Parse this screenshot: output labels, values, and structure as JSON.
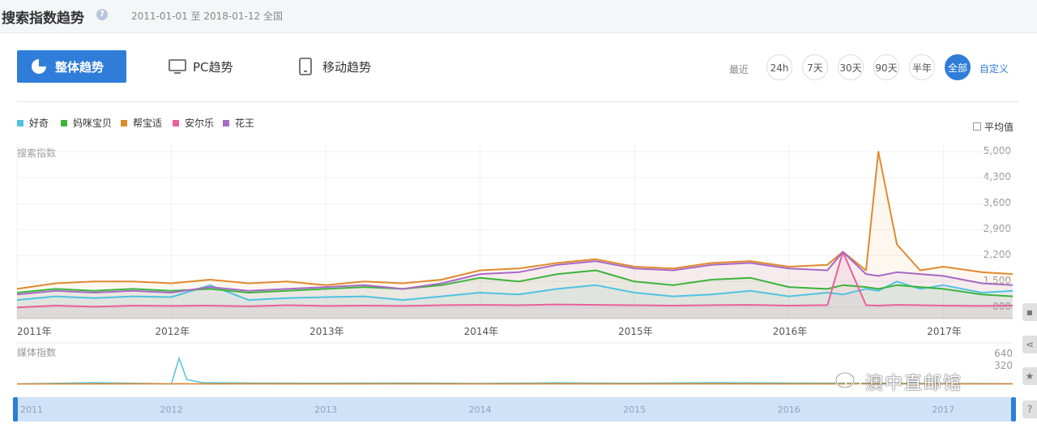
{
  "header": {
    "title": "搜索指数趋势",
    "date_range": "2011-01-01 至 2018-01-12",
    "region": "全国"
  },
  "tabs": [
    {
      "label": "整体趋势",
      "active": true,
      "icon": "pie-chart-icon"
    },
    {
      "label": "PC趋势",
      "active": false,
      "icon": "monitor-icon"
    },
    {
      "label": "移动趋势",
      "active": false,
      "icon": "mobile-icon"
    }
  ],
  "range": {
    "label": "最近",
    "options": [
      "24h",
      "7天",
      "30天",
      "90天",
      "半年",
      "全部"
    ],
    "active": "全部",
    "custom": "自定义"
  },
  "legend": [
    {
      "name": "好奇",
      "color": "#4fc3e0"
    },
    {
      "name": "妈咪宝贝",
      "color": "#3cb43c"
    },
    {
      "name": "帮宝适",
      "color": "#e08a2e"
    },
    {
      "name": "安尔乐",
      "color": "#e8609a"
    },
    {
      "name": "花王",
      "color": "#a869c6"
    }
  ],
  "average_toggle": {
    "label": "平均值",
    "checked": false
  },
  "chart_data": [
    {
      "type": "line",
      "title": "搜索指数",
      "x_ticks": [
        "2011年",
        "2012年",
        "2013年",
        "2014年",
        "2015年",
        "2016年",
        "2017年"
      ],
      "y_ticks": [
        "800",
        "1,500",
        "2,200",
        "2,900",
        "3,600",
        "4,300",
        "5,000"
      ],
      "ylim": [
        500,
        5200
      ],
      "x": [
        2011.0,
        2011.25,
        2011.5,
        2011.75,
        2012.0,
        2012.25,
        2012.5,
        2012.75,
        2013.0,
        2013.25,
        2013.5,
        2013.75,
        2014.0,
        2014.25,
        2014.5,
        2014.75,
        2015.0,
        2015.25,
        2015.5,
        2015.75,
        2016.0,
        2016.25,
        2016.35,
        2016.5,
        2016.58,
        2016.7,
        2016.85,
        2017.0,
        2017.25,
        2017.45
      ],
      "series": [
        {
          "name": "好奇",
          "values": [
            1000,
            1100,
            1050,
            1100,
            1080,
            1400,
            1000,
            1050,
            1080,
            1100,
            1000,
            1100,
            1200,
            1150,
            1300,
            1400,
            1200,
            1100,
            1150,
            1250,
            1100,
            1200,
            1150,
            1300,
            1250,
            1500,
            1300,
            1400,
            1200,
            1250
          ]
        },
        {
          "name": "妈咪宝贝",
          "values": [
            1200,
            1300,
            1250,
            1300,
            1250,
            1300,
            1200,
            1250,
            1300,
            1350,
            1300,
            1400,
            1600,
            1500,
            1700,
            1800,
            1500,
            1400,
            1550,
            1600,
            1350,
            1300,
            1400,
            1350,
            1300,
            1400,
            1350,
            1300,
            1150,
            1100
          ]
        },
        {
          "name": "帮宝适",
          "values": [
            1300,
            1450,
            1500,
            1500,
            1450,
            1550,
            1450,
            1500,
            1400,
            1500,
            1450,
            1550,
            1800,
            1850,
            2000,
            2100,
            1900,
            1850,
            2000,
            2050,
            1900,
            1950,
            2300,
            1800,
            5000,
            2500,
            1800,
            1900,
            1750,
            1700
          ]
        },
        {
          "name": "安尔乐",
          "values": [
            800,
            850,
            820,
            850,
            840,
            850,
            830,
            860,
            840,
            850,
            840,
            860,
            870,
            860,
            880,
            870,
            860,
            850,
            860,
            870,
            850,
            860,
            2300,
            860,
            850,
            870,
            860,
            850,
            840,
            850
          ]
        },
        {
          "name": "花王",
          "values": [
            1150,
            1250,
            1200,
            1250,
            1200,
            1350,
            1250,
            1300,
            1350,
            1400,
            1300,
            1450,
            1700,
            1750,
            1950,
            2050,
            1850,
            1800,
            1950,
            2000,
            1850,
            1800,
            2300,
            1700,
            1650,
            1750,
            1700,
            1650,
            1450,
            1400
          ]
        }
      ]
    },
    {
      "type": "line",
      "title": "媒体指数",
      "y_ticks": [
        "320",
        "640"
      ],
      "ylim": [
        0,
        700
      ],
      "x": [
        2011.0,
        2011.5,
        2011.85,
        2012.0,
        2012.05,
        2012.1,
        2012.2,
        2012.5,
        2013.0,
        2013.5,
        2014.0,
        2014.5,
        2015.0,
        2015.5,
        2016.0,
        2016.5,
        2017.0,
        2017.45
      ],
      "series": [
        {
          "name": "好奇",
          "values": [
            10,
            40,
            20,
            10,
            660,
            120,
            40,
            30,
            25,
            30,
            20,
            35,
            25,
            40,
            30,
            25,
            20,
            15
          ]
        },
        {
          "name": "帮宝适",
          "values": [
            8,
            10,
            12,
            10,
            15,
            12,
            10,
            12,
            10,
            12,
            10,
            12,
            10,
            12,
            10,
            12,
            10,
            10
          ]
        }
      ]
    }
  ],
  "navigator": {
    "ticks": [
      "2011",
      "2012",
      "2013",
      "2014",
      "2015",
      "2016",
      "2017"
    ]
  },
  "watermark": "澳中直邮馆",
  "side_icons": [
    "comment-icon",
    "share-icon",
    "star-icon",
    "help-icon"
  ]
}
